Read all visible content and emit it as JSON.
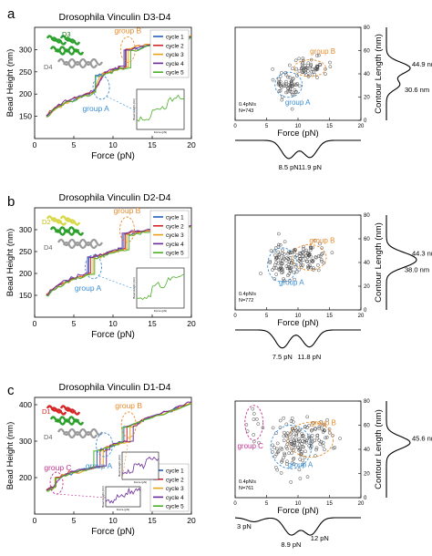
{
  "colors": {
    "cycle1": "#1f5fbf",
    "cycle2": "#d62728",
    "cycle3": "#e8a317",
    "cycle4": "#6a2a9a",
    "cycle5": "#4caf2a",
    "group_a": "#3a8fd6",
    "group_b": "#e88a2a",
    "group_c": "#c0338f",
    "scatter_point": "#333333"
  },
  "figure_panels": [
    {
      "letter": "a",
      "title": "Drosophila Vinculin D3-D4",
      "protein_labels": [
        "D3",
        "D4"
      ],
      "group_labels": [
        "group A",
        "group B"
      ],
      "inset_ylabel": "Bead Height (nm)",
      "inset_xlabel": "Force (pN)",
      "scatter": {
        "xlabel": "Force (pN)",
        "ylabel": "Contour Length (nm)",
        "xlim": [
          0,
          20
        ],
        "ylim": [
          0,
          80
        ],
        "xticks": [
          "0",
          "5",
          "10",
          "15",
          "20"
        ],
        "yticks": [
          "0",
          "20",
          "40",
          "60",
          "80"
        ],
        "annotation": [
          "0.4pN/s",
          "N=743"
        ],
        "group_labels": [
          "group A",
          "group B"
        ]
      },
      "contour_peaks": [
        "44.9 nm",
        "30.6 nm"
      ],
      "force_peaks": [
        "8.5 pN",
        "11.9 pN"
      ]
    },
    {
      "letter": "b",
      "title": "Drosophila Vinculin D2-D4",
      "protein_labels": [
        "D2",
        "D4"
      ],
      "group_labels": [
        "group A",
        "group B"
      ],
      "inset_ylabel": "Bead Height (nm)",
      "inset_xlabel": "Force (pN)",
      "scatter": {
        "xlabel": "Force (pN)",
        "ylabel": "Contour Length (nm)",
        "xlim": [
          0,
          20
        ],
        "ylim": [
          0,
          80
        ],
        "xticks": [
          "0",
          "5",
          "10",
          "15",
          "20"
        ],
        "yticks": [
          "0",
          "20",
          "40",
          "60",
          "80"
        ],
        "annotation": [
          "0.4pN/s",
          "N=772"
        ],
        "group_labels": [
          "group A",
          "group B"
        ]
      },
      "contour_peaks": [
        "44.3 nm",
        "38.0 nm"
      ],
      "force_peaks": [
        "7.5 pN",
        "11.8 pN"
      ]
    },
    {
      "letter": "c",
      "title": "Drosophila Vinculin D1-D4",
      "protein_labels": [
        "D1",
        "D4"
      ],
      "group_labels": [
        "group A",
        "group B",
        "group C"
      ],
      "inset_ylabel": "Bead Height (nm)",
      "inset_xlabel": "Force (pN)",
      "scatter": {
        "xlabel": "Force (pN)",
        "ylabel": "Contour Length (nm)",
        "xlim": [
          0,
          20
        ],
        "ylim": [
          0,
          80
        ],
        "xticks": [
          "0",
          "5",
          "10",
          "15",
          "20"
        ],
        "yticks": [
          "0",
          "20",
          "40",
          "60",
          "80"
        ],
        "annotation": [
          "0.4pN/s",
          "N=761"
        ],
        "group_labels": [
          "group A",
          "group B",
          "group C"
        ]
      },
      "contour_peaks": [
        "45.6 nm"
      ],
      "force_peaks": [
        "3 pN",
        "8.9 pN",
        "12 pN"
      ]
    }
  ],
  "chart_data": [
    {
      "type": "line",
      "title": "Drosophila Vinculin D3-D4",
      "xlabel": "Force (pN)",
      "ylabel": "Bead Height (nm)",
      "xlim": [
        0,
        20
      ],
      "ylim": [
        100,
        350
      ],
      "xticks": [
        0,
        5,
        10,
        15,
        20
      ],
      "yticks": [
        150,
        200,
        250,
        300
      ],
      "legend_position": "top-right",
      "series": [
        {
          "name": "cycle 1",
          "x": [
            1.5,
            2.8,
            4.5,
            6.3,
            7.6,
            8.1,
            9.2,
            10.5,
            11.4,
            12.0,
            14.5,
            17.0,
            20.0
          ],
          "y": [
            150,
            170,
            185,
            197,
            206,
            242,
            248,
            255,
            260,
            300,
            310,
            318,
            330
          ]
        },
        {
          "name": "cycle 2",
          "x": [
            1.5,
            2.8,
            4.5,
            6.3,
            7.6,
            8.7,
            9.2,
            10.5,
            11.5,
            12.1,
            14.5,
            17.0,
            20.0
          ],
          "y": [
            152,
            171,
            186,
            198,
            207,
            243,
            249,
            256,
            262,
            301,
            311,
            319,
            331
          ]
        },
        {
          "name": "cycle 3",
          "x": [
            1.5,
            2.8,
            4.5,
            6.3,
            7.6,
            8.4,
            9.2,
            10.5,
            11.8,
            12.3,
            14.5,
            17.0,
            20.0
          ],
          "y": [
            148,
            169,
            184,
            196,
            205,
            241,
            247,
            254,
            261,
            302,
            312,
            320,
            332
          ]
        },
        {
          "name": "cycle 4",
          "x": [
            1.5,
            2.8,
            4.5,
            6.3,
            7.6,
            8.9,
            9.2,
            10.5,
            11.2,
            11.9,
            14.5,
            17.0,
            20.0
          ],
          "y": [
            151,
            172,
            187,
            199,
            208,
            244,
            250,
            257,
            263,
            299,
            309,
            317,
            329
          ]
        },
        {
          "name": "cycle 5",
          "x": [
            1.5,
            2.8,
            4.5,
            6.3,
            7.6,
            8.2,
            9.2,
            10.5,
            12.1,
            12.6,
            14.5,
            17.0,
            20.0
          ],
          "y": [
            149,
            168,
            183,
            195,
            204,
            240,
            246,
            253,
            259,
            298,
            308,
            316,
            328
          ]
        }
      ]
    },
    {
      "type": "line",
      "title": "Drosophila Vinculin D2-D4",
      "xlabel": "Force (pN)",
      "ylabel": "Bead Height (nm)",
      "xlim": [
        0,
        20
      ],
      "ylim": [
        100,
        350
      ],
      "xticks": [
        0,
        5,
        10,
        15,
        20
      ],
      "yticks": [
        150,
        200,
        250,
        300
      ],
      "legend_position": "top-right",
      "series": [
        {
          "name": "cycle 1",
          "x": [
            1.5,
            3.0,
            5.0,
            6.8,
            7.2,
            9.0,
            10.5,
            11.2,
            11.8,
            14.0,
            17.0,
            20.0
          ],
          "y": [
            150,
            172,
            188,
            200,
            236,
            244,
            252,
            256,
            290,
            296,
            302,
            308
          ]
        },
        {
          "name": "cycle 2",
          "x": [
            1.5,
            3.0,
            5.0,
            7.0,
            7.5,
            9.0,
            10.5,
            11.4,
            12.0,
            14.0,
            17.0,
            20.0
          ],
          "y": [
            152,
            173,
            189,
            201,
            237,
            245,
            253,
            257,
            291,
            297,
            303,
            309
          ]
        },
        {
          "name": "cycle 3",
          "x": [
            1.5,
            3.0,
            5.0,
            7.3,
            7.8,
            9.0,
            10.5,
            11.6,
            12.2,
            14.0,
            17.0,
            20.0
          ],
          "y": [
            148,
            171,
            187,
            199,
            235,
            243,
            251,
            255,
            289,
            295,
            301,
            307
          ]
        },
        {
          "name": "cycle 4",
          "x": [
            1.5,
            3.0,
            5.0,
            6.6,
            7.1,
            9.0,
            10.5,
            11.0,
            11.6,
            14.0,
            17.0,
            20.0
          ],
          "y": [
            151,
            174,
            190,
            202,
            238,
            246,
            254,
            258,
            292,
            298,
            304,
            310
          ]
        },
        {
          "name": "cycle 5",
          "x": [
            1.5,
            3.0,
            5.0,
            7.5,
            8.0,
            9.0,
            10.5,
            11.9,
            12.4,
            14.0,
            17.0,
            20.0
          ],
          "y": [
            149,
            170,
            186,
            198,
            234,
            242,
            250,
            254,
            288,
            294,
            300,
            306
          ]
        }
      ]
    },
    {
      "type": "line",
      "title": "Drosophila Vinculin D1-D4",
      "xlabel": "Force (pN)",
      "ylabel": "Bead Height (nm)",
      "xlim": [
        0,
        20
      ],
      "ylim": [
        100,
        420
      ],
      "xticks": [
        0,
        5,
        10,
        15,
        20
      ],
      "yticks": [
        200,
        300,
        400
      ],
      "legend_position": "bottom-right",
      "series": [
        {
          "name": "cycle 1",
          "x": [
            1.5,
            2.5,
            3.0,
            5.0,
            7.8,
            8.3,
            9.5,
            10.5,
            11.2,
            11.8,
            14.0,
            17.0,
            20.0
          ],
          "y": [
            165,
            175,
            200,
            215,
            230,
            275,
            285,
            292,
            298,
            340,
            360,
            380,
            405
          ]
        },
        {
          "name": "cycle 2",
          "x": [
            1.5,
            2.5,
            3.2,
            5.0,
            8.2,
            8.7,
            9.5,
            10.5,
            11.6,
            12.2,
            14.0,
            17.0,
            20.0
          ],
          "y": [
            166,
            176,
            201,
            216,
            231,
            276,
            286,
            293,
            299,
            341,
            361,
            381,
            406
          ]
        },
        {
          "name": "cycle 3",
          "x": [
            1.5,
            2.5,
            2.8,
            5.0,
            8.6,
            9.1,
            9.5,
            10.5,
            12.0,
            12.6,
            14.0,
            17.0,
            20.0
          ],
          "y": [
            164,
            174,
            199,
            214,
            229,
            274,
            284,
            291,
            297,
            339,
            359,
            379,
            404
          ]
        },
        {
          "name": "cycle 4",
          "x": [
            1.5,
            2.5,
            3.4,
            5.0,
            9.0,
            9.5,
            9.8,
            10.5,
            12.4,
            13.0,
            14.0,
            17.0,
            20.0
          ],
          "y": [
            167,
            177,
            202,
            217,
            232,
            277,
            287,
            294,
            300,
            342,
            362,
            382,
            407
          ]
        },
        {
          "name": "cycle 5",
          "x": [
            1.5,
            2.5,
            3.0,
            5.0,
            7.4,
            7.9,
            9.5,
            10.5,
            11.0,
            11.6,
            14.0,
            17.0,
            20.0
          ],
          "y": [
            163,
            173,
            198,
            213,
            228,
            273,
            283,
            290,
            296,
            338,
            358,
            378,
            403
          ]
        }
      ]
    },
    {
      "type": "scatter",
      "title": "",
      "xlabel": "Force (pN)",
      "ylabel": "Contour Length (nm)",
      "xlim": [
        0,
        20
      ],
      "ylim": [
        0,
        80
      ],
      "groups": [
        {
          "name": "group A",
          "center": [
            8.5,
            30.6
          ],
          "spread": [
            1.2,
            6
          ]
        },
        {
          "name": "group B",
          "center": [
            11.9,
            44.9
          ],
          "spread": [
            1.4,
            4
          ]
        }
      ],
      "contour_length_histogram_peaks_nm": [
        44.9,
        30.6
      ],
      "force_histogram_peaks_pN": [
        8.5,
        11.9
      ]
    },
    {
      "type": "scatter",
      "title": "",
      "xlabel": "Force (pN)",
      "ylabel": "Contour Length (nm)",
      "xlim": [
        0,
        20
      ],
      "ylim": [
        0,
        80
      ],
      "groups": [
        {
          "name": "group A",
          "center": [
            7.5,
            38.0
          ],
          "spread": [
            1.3,
            8
          ]
        },
        {
          "name": "group B",
          "center": [
            11.8,
            44.3
          ],
          "spread": [
            1.5,
            6
          ]
        }
      ],
      "contour_length_histogram_peaks_nm": [
        44.3,
        38.0
      ],
      "force_histogram_peaks_pN": [
        7.5,
        11.8
      ]
    },
    {
      "type": "scatter",
      "title": "",
      "xlabel": "Force (pN)",
      "ylabel": "Contour Length (nm)",
      "xlim": [
        0,
        20
      ],
      "ylim": [
        0,
        80
      ],
      "groups": [
        {
          "name": "group A",
          "center": [
            8.9,
            42
          ],
          "spread": [
            1.8,
            10
          ]
        },
        {
          "name": "group B",
          "center": [
            12.0,
            48
          ],
          "spread": [
            2.0,
            8
          ]
        },
        {
          "name": "group C",
          "center": [
            3.0,
            62
          ],
          "spread": [
            0.8,
            8
          ]
        }
      ],
      "contour_length_histogram_peaks_nm": [
        45.6
      ],
      "force_histogram_peaks_pN": [
        3,
        8.9,
        12
      ]
    }
  ]
}
